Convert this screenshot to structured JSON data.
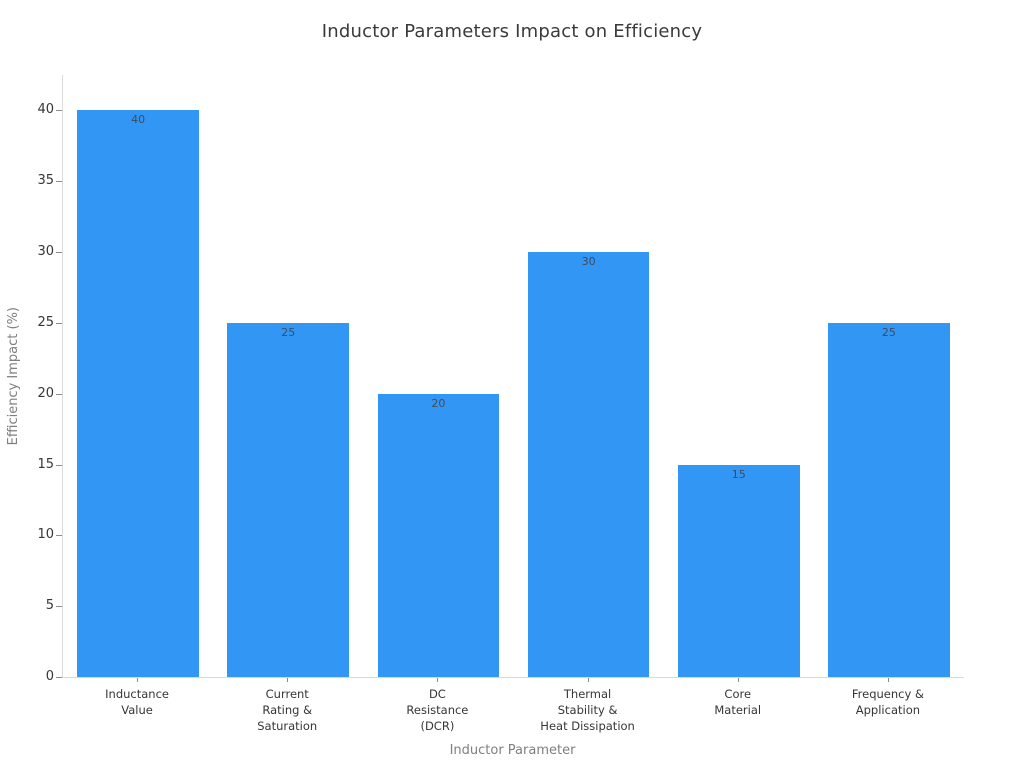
{
  "chart_data": {
    "type": "bar",
    "title": "Inductor Parameters Impact on Efficiency",
    "xlabel": "Inductor Parameter",
    "ylabel": "Efficiency Impact (%)",
    "categories": [
      "Inductance\nValue",
      "Current\nRating &\nSaturation",
      "DC\nResistance\n(DCR)",
      "Thermal\nStability &\nHeat Dissipation",
      "Core\nMaterial",
      "Frequency &\nApplication"
    ],
    "values": [
      40,
      25,
      20,
      30,
      15,
      25
    ],
    "bar_labels": [
      "40",
      "25",
      "20",
      "30",
      "15",
      "25"
    ],
    "yticks": [
      0,
      5,
      10,
      15,
      20,
      25,
      30,
      35,
      40
    ],
    "ylim": [
      0,
      42.5
    ],
    "grid": false,
    "legend": null,
    "bar_color": "#3296f5",
    "bar_label_color": "#3f4c5d",
    "axis_line_color": "#d9d9d9",
    "tick_color": "#8c8c8c"
  }
}
